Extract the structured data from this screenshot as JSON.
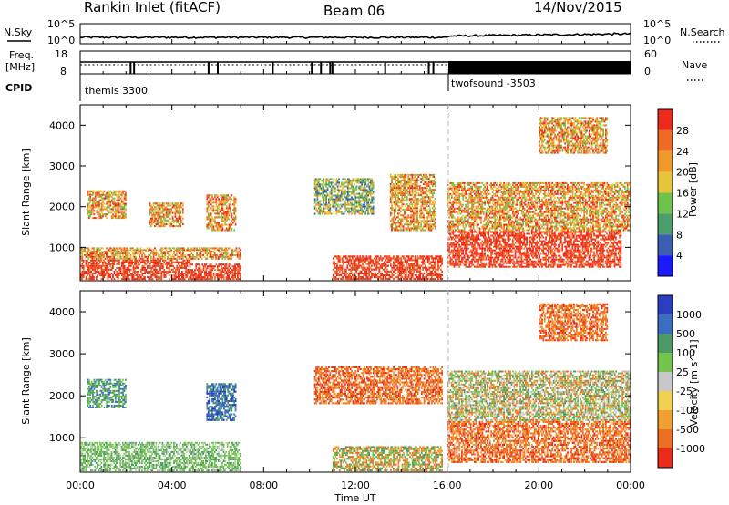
{
  "header": {
    "station": "Rankin Inlet (fitACF)",
    "beam": "Beam 06",
    "date": "14/Nov/2015"
  },
  "strip_panels": {
    "nsky": {
      "left_label": "N.Sky",
      "right_label": "N.Search",
      "left_ticks": [
        "10^5",
        "10^0"
      ],
      "right_ticks": [
        "10^5",
        "10^0"
      ]
    },
    "freq": {
      "left_label_line1": "Freq.",
      "left_label_line2": "[MHz]",
      "right_label": "Nave",
      "left_ticks": [
        "18",
        "8"
      ],
      "right_ticks": [
        "60",
        "0"
      ]
    },
    "cpid": {
      "label": "CPID",
      "programs": [
        "themis 3300",
        "twofsound -3503"
      ]
    }
  },
  "chart_data": [
    {
      "type": "heatmap",
      "name": "power-panel",
      "ylabel": "Slant Range [km]",
      "xlabel": "",
      "colorbar_label": "Power [dB]",
      "colorbar_ticks": [
        "4",
        "8",
        "12",
        "16",
        "20",
        "24",
        "28"
      ],
      "colorbar_colors": [
        "#1a1aff",
        "#3a5fb0",
        "#4c9e6a",
        "#6fc24a",
        "#e8c43a",
        "#ee9a2a",
        "#ef6a22",
        "#ee2a1a"
      ],
      "yticks": [
        1000,
        2000,
        3000,
        4000
      ],
      "ylim": [
        180,
        4500
      ],
      "xlim": [
        0,
        24
      ],
      "regions": [
        {
          "t0": 0.0,
          "t1": 4.8,
          "r0": 200,
          "r1": 700,
          "level": "high"
        },
        {
          "t0": 4.8,
          "t1": 7.0,
          "r0": 200,
          "r1": 600,
          "level": "high"
        },
        {
          "t0": 0.0,
          "t1": 7.0,
          "r0": 700,
          "r1": 1000,
          "level": "mid"
        },
        {
          "t0": 0.3,
          "t1": 2.0,
          "r0": 1700,
          "r1": 2400,
          "level": "mid"
        },
        {
          "t0": 3.0,
          "t1": 4.5,
          "r0": 1500,
          "r1": 2100,
          "level": "mid"
        },
        {
          "t0": 5.5,
          "t1": 6.8,
          "r0": 1400,
          "r1": 2300,
          "level": "mid"
        },
        {
          "t0": 10.2,
          "t1": 12.8,
          "r0": 1800,
          "r1": 2700,
          "level": "low"
        },
        {
          "t0": 11.0,
          "t1": 15.8,
          "r0": 200,
          "r1": 800,
          "level": "high"
        },
        {
          "t0": 13.5,
          "t1": 15.5,
          "r0": 1400,
          "r1": 2800,
          "level": "mid"
        },
        {
          "t0": 16.0,
          "t1": 23.6,
          "r0": 500,
          "r1": 1400,
          "level": "high"
        },
        {
          "t0": 16.0,
          "t1": 24.0,
          "r0": 1400,
          "r1": 2600,
          "level": "mid"
        },
        {
          "t0": 20.0,
          "t1": 23.0,
          "r0": 3300,
          "r1": 4200,
          "level": "mid"
        }
      ]
    },
    {
      "type": "heatmap",
      "name": "velocity-panel",
      "ylabel": "Slant Range [km]",
      "xlabel": "Time UT",
      "colorbar_label": "Velocity [m s^-1]",
      "colorbar_ticks": [
        "1000",
        "500",
        "100",
        "25",
        "-25",
        "-100",
        "-500",
        "-1000"
      ],
      "colorbar_colors": [
        "#2a3fc0",
        "#3a6ec0",
        "#4d9a68",
        "#72c44c",
        "#c8c8c8",
        "#f2cf50",
        "#f0a030",
        "#ee6f22",
        "#ee2a1a"
      ],
      "xticks": [
        "00:00",
        "04:00",
        "08:00",
        "12:00",
        "16:00",
        "20:00",
        "00:00"
      ],
      "yticks": [
        1000,
        2000,
        3000,
        4000
      ],
      "ylim": [
        180,
        4500
      ],
      "xlim": [
        0,
        24
      ],
      "regions": [
        {
          "t0": 0.0,
          "t1": 7.0,
          "r0": 200,
          "r1": 900,
          "level": "green-grey"
        },
        {
          "t0": 0.3,
          "t1": 2.0,
          "r0": 1700,
          "r1": 2400,
          "level": "green"
        },
        {
          "t0": 5.5,
          "t1": 6.8,
          "r0": 1400,
          "r1": 2300,
          "level": "blue"
        },
        {
          "t0": 10.2,
          "t1": 15.8,
          "r0": 1800,
          "r1": 2700,
          "level": "orange"
        },
        {
          "t0": 11.0,
          "t1": 15.8,
          "r0": 200,
          "r1": 800,
          "level": "green-orange"
        },
        {
          "t0": 16.0,
          "t1": 24.0,
          "r0": 400,
          "r1": 1400,
          "level": "orange"
        },
        {
          "t0": 16.0,
          "t1": 24.0,
          "r0": 1400,
          "r1": 2600,
          "level": "mixed"
        },
        {
          "t0": 20.0,
          "t1": 23.0,
          "r0": 3300,
          "r1": 4200,
          "level": "orange"
        }
      ]
    }
  ]
}
